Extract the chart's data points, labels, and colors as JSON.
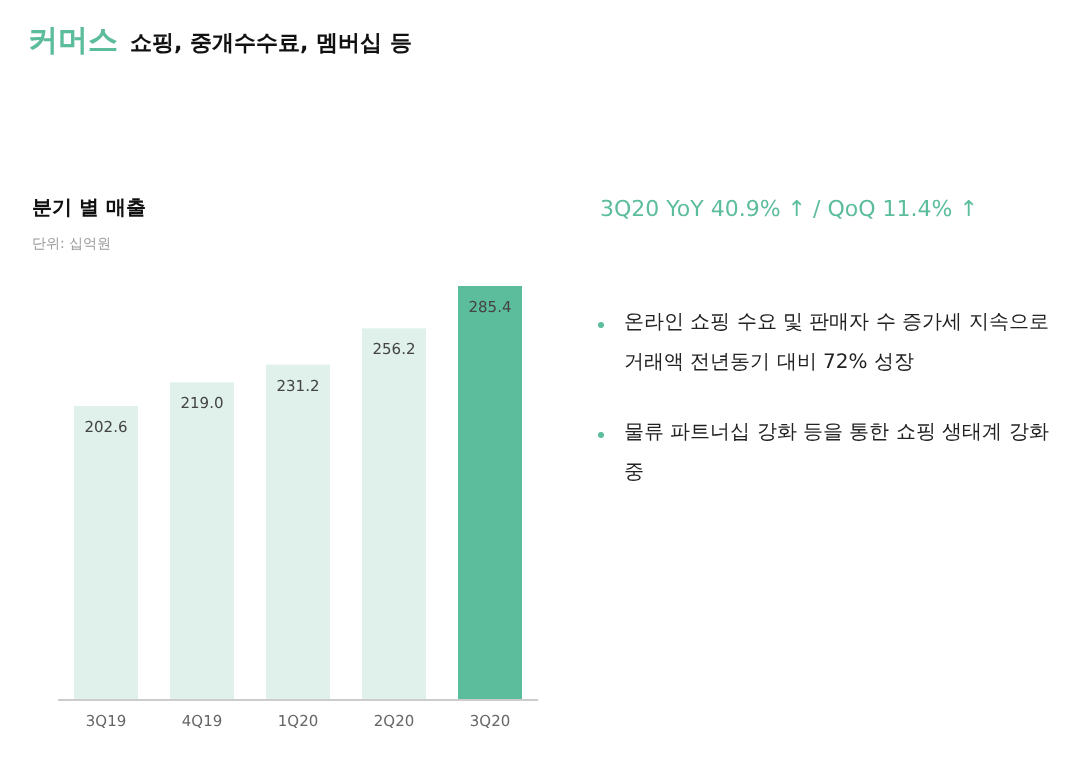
{
  "chart_data": {
    "type": "bar",
    "title": "커머스",
    "subtitle": "쇼핑, 중개수수료, 멤버십 등",
    "annotations": [
      "분기 별 매출",
      "단위: 십억원",
      "3Q20 YoY 40.9% ↑ / QoQ 11.4% ↑",
      "온라인 쇼핑 수요 및 판매자 수 증가세 지속으로 거래액 전년동기 대비 72% 성장",
      "물류 파트너십 강화 등을 통한 쇼핑 생태계 강화 중"
    ],
    "categories": [
      "3Q19",
      "4Q19",
      "1Q20",
      "2Q20",
      "3Q20"
    ],
    "values": [
      202.6,
      219.0,
      231.2,
      256.2,
      285.4
    ],
    "colors": [
      "#dff1ea",
      "#dff1ea",
      "#dff1ea",
      "#dff1ea",
      "#5cbd9c"
    ],
    "value_labels": [
      "202.6",
      "219.0",
      "231.2",
      "256.2",
      "285.4"
    ],
    "relative": false
  }
}
